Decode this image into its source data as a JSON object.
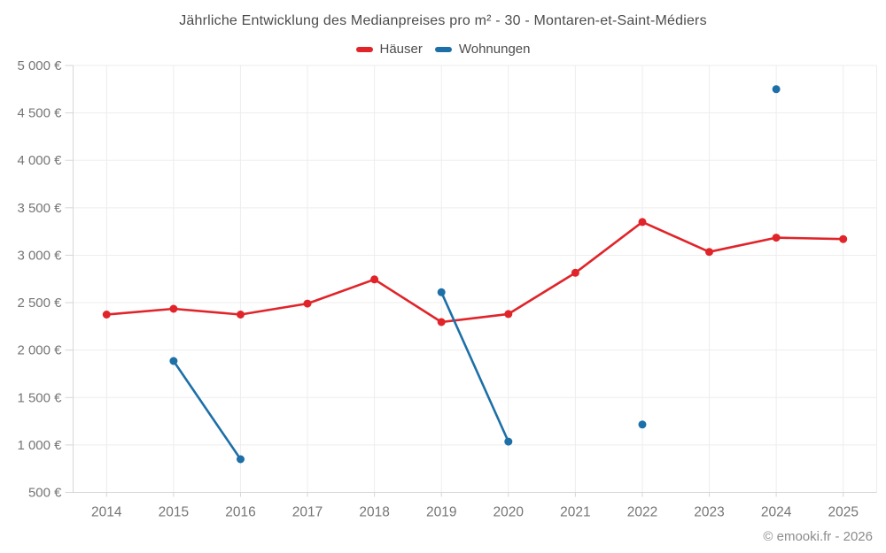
{
  "header": {
    "title": "Jährliche Entwicklung des Medianpreises pro m² - 30 - Montaren-et-Saint-Médiers"
  },
  "legend": {
    "items": [
      {
        "id": "haeuser",
        "label": "Häuser",
        "color": "#e02429"
      },
      {
        "id": "wohnungen",
        "label": "Wohnungen",
        "color": "#1d6fa8"
      }
    ]
  },
  "footer": {
    "copyright": "© emooki.fr - 2026"
  },
  "chart_data": {
    "type": "line",
    "title": "Jährliche Entwicklung des Medianpreises pro m² - 30 - Montaren-et-Saint-Médiers",
    "categories": [
      "2014",
      "2015",
      "2016",
      "2017",
      "2018",
      "2019",
      "2020",
      "2021",
      "2022",
      "2023",
      "2024",
      "2025"
    ],
    "series": [
      {
        "id": "haeuser",
        "name": "Häuser",
        "color": "#e02429",
        "values": [
          2375,
          2435,
          2375,
          2490,
          2745,
          2295,
          2380,
          2815,
          3350,
          3035,
          3185,
          3170
        ]
      },
      {
        "id": "wohnungen",
        "name": "Wohnungen",
        "color": "#1d6fa8",
        "values": [
          null,
          1885,
          850,
          null,
          null,
          2610,
          1035,
          null,
          1215,
          null,
          4750,
          null
        ]
      }
    ],
    "xlabel": "",
    "ylabel": "",
    "ylim": [
      500,
      5000
    ],
    "y_tick_step": 500,
    "y_tick_labels": [
      "500 €",
      "1 000 €",
      "1 500 €",
      "2 000 €",
      "2 500 €",
      "3 000 €",
      "3 500 €",
      "4 000 €",
      "4 500 €",
      "5 000 €"
    ],
    "currency": "€",
    "grid": true,
    "legend_position": "top"
  }
}
